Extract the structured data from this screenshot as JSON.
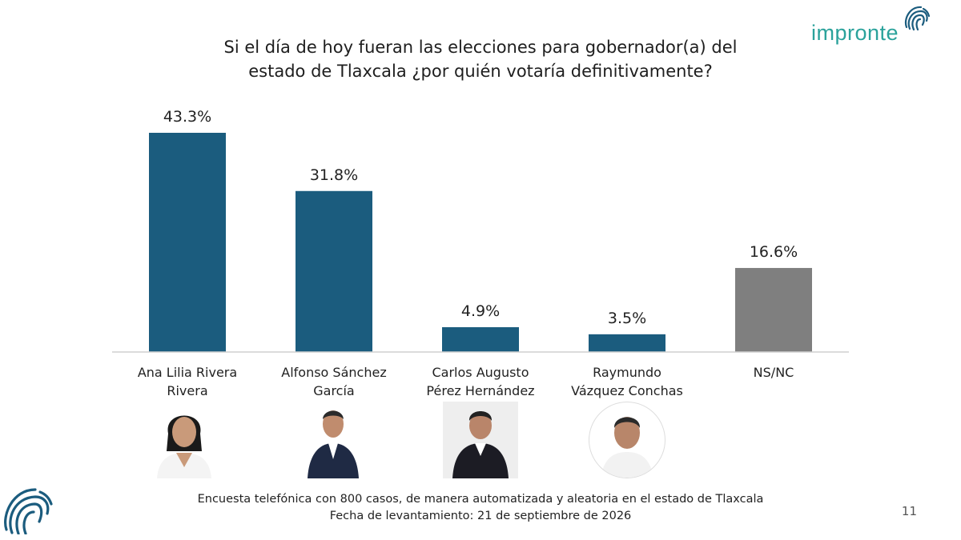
{
  "header": {
    "title_line1": "Si el día de hoy fueran las elecciones para gobernador(a) del",
    "title_line2": "estado de Tlaxcala ¿por quién votaría definitivamente?",
    "brand": "impronte"
  },
  "colors": {
    "candidate_bar": "#1b5c7e",
    "other_bar": "#7f7f7f",
    "brand": "#2aa29b",
    "axis": "#cfcfcf"
  },
  "chart_data": {
    "type": "bar",
    "categories": [
      "Ana Lilia Rivera Rivera",
      "Alfonso Sánchez García",
      "Carlos Augusto Pérez Hernández",
      "Raymundo Vázquez Conchas",
      "NS/NC"
    ],
    "category_lines": [
      [
        "Ana Lilia Rivera",
        "Rivera"
      ],
      [
        "Alfonso Sánchez",
        "García"
      ],
      [
        "Carlos Augusto",
        "Pérez Hernández"
      ],
      [
        "Raymundo",
        "Vázquez Conchas"
      ],
      [
        "NS/NC",
        ""
      ]
    ],
    "values": [
      43.3,
      31.8,
      4.9,
      3.5,
      16.6
    ],
    "value_labels": [
      "43.3%",
      "31.8%",
      "4.9%",
      "3.5%",
      "16.6%"
    ],
    "ylim": [
      0,
      45
    ],
    "grid": false,
    "legend": "none",
    "title": "Si el día de hoy fueran las elecciones para gobernador(a) del estado de Tlaxcala ¿por quién votaría definitivamente?"
  },
  "footer": {
    "line1": "Encuesta telefónica con 800 casos, de manera automatizada y aleatoria en el estado de Tlaxcala",
    "line2": "Fecha de levantamiento: 21 de septiembre de 2026"
  },
  "page_number": "11",
  "icons": [
    "fingerprint-logo-icon",
    "fingerprint-corner-icon"
  ]
}
